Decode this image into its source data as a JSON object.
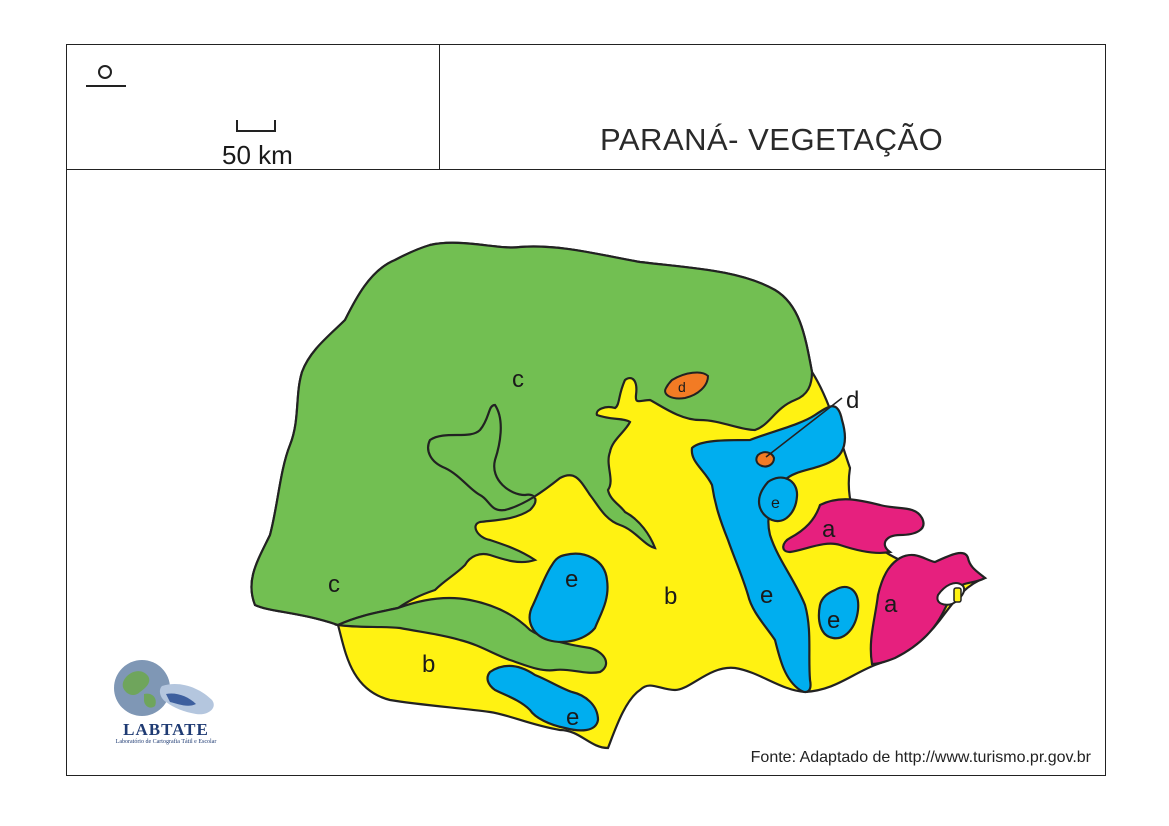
{
  "title": "PARANÁ- VEGETAÇÃO",
  "scale_label": "50 km",
  "source": "Fonte: Adaptado de http://www.turismo.pr.gov.br",
  "logo": {
    "name": "LABTATE",
    "subtitle": "Laboratório de Cartografia Tátil e Escolar"
  },
  "regions": {
    "c_north": "c",
    "c_west": "c",
    "b_center": "b",
    "b_south": "b",
    "e_center": "e",
    "e_east": "e",
    "e_lake": "e",
    "e_south": "e",
    "e_small": "e",
    "a_north": "a",
    "a_south": "a",
    "d_small": "d",
    "d_callout": "d"
  },
  "colors": {
    "c": "#72bf52",
    "b": "#fff212",
    "e": "#00aeef",
    "a": "#e6207e",
    "d": "#f27b24"
  }
}
